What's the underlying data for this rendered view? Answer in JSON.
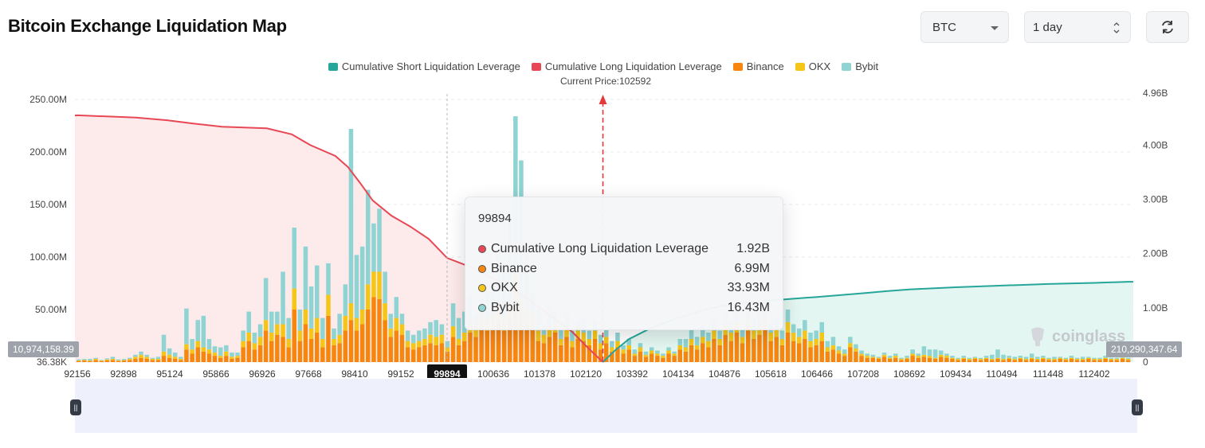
{
  "header": {
    "title": "Bitcoin Exchange Liquidation Map",
    "coin_select": "BTC",
    "range_select": "1 day"
  },
  "colors": {
    "short_cum": "#26a69a",
    "long_cum": "#e84855",
    "binance": "#f7860f",
    "okx": "#f5c518",
    "bybit": "#8fd3d3"
  },
  "current_price_label": "Current Price:102592",
  "chart_data": {
    "type": "bar",
    "legend": [
      "Cumulative Short Liquidation Leverage",
      "Cumulative Long Liquidation Leverage",
      "Binance",
      "OKX",
      "Bybit"
    ],
    "legend_placement": "top-center",
    "current_price": 102592,
    "x_ticks": [
      "92156",
      "92898",
      "95124",
      "95866",
      "96926",
      "97668",
      "98410",
      "99152",
      "99894",
      "100636",
      "101378",
      "102120",
      "103392",
      "104134",
      "104876",
      "105618",
      "106466",
      "107208",
      "108692",
      "109434",
      "110494",
      "111448",
      "112402"
    ],
    "highlighted_x": "99894",
    "y_left_ticks": [
      "36.38K",
      "50.00M",
      "100.00M",
      "150.00M",
      "200.00M",
      "250.00M"
    ],
    "y_right_ticks": [
      "0",
      "1.00B",
      "2.00B",
      "3.00B",
      "4.00B",
      "4.96B"
    ],
    "y_left_range_millions": [
      0,
      250
    ],
    "y_right_range_billions": [
      0,
      4.96
    ],
    "edge_labels": {
      "left": "10,974,158.39",
      "right": "210,290,347.64"
    },
    "bars": [
      [
        1,
        0.5,
        1
      ],
      [
        1.5,
        0.5,
        1
      ],
      [
        1,
        0.5,
        1.5
      ],
      [
        2,
        1,
        1
      ],
      [
        1,
        0.5,
        0.5
      ],
      [
        1.5,
        1,
        1
      ],
      [
        2,
        1,
        2
      ],
      [
        1,
        0.5,
        1
      ],
      [
        1.5,
        0.5,
        1
      ],
      [
        2,
        1,
        1
      ],
      [
        3,
        2,
        2
      ],
      [
        4,
        3,
        3
      ],
      [
        3,
        2,
        2
      ],
      [
        2,
        1,
        1
      ],
      [
        2,
        1,
        2
      ],
      [
        6,
        4,
        16
      ],
      [
        4,
        3,
        6
      ],
      [
        3,
        2,
        4
      ],
      [
        2,
        1,
        2
      ],
      [
        12,
        5,
        34
      ],
      [
        8,
        4,
        10
      ],
      [
        14,
        6,
        20
      ],
      [
        10,
        4,
        30
      ],
      [
        8,
        4,
        10
      ],
      [
        6,
        3,
        6
      ],
      [
        4,
        2,
        8
      ],
      [
        6,
        4,
        6
      ],
      [
        3,
        2,
        4
      ],
      [
        4,
        2,
        3
      ],
      [
        14,
        6,
        10
      ],
      [
        20,
        8,
        20
      ],
      [
        12,
        6,
        10
      ],
      [
        16,
        8,
        12
      ],
      [
        30,
        10,
        40
      ],
      [
        20,
        8,
        20
      ],
      [
        26,
        10,
        12
      ],
      [
        24,
        12,
        50
      ],
      [
        14,
        8,
        20
      ],
      [
        50,
        20,
        58
      ],
      [
        20,
        10,
        20
      ],
      [
        36,
        14,
        60
      ],
      [
        22,
        10,
        40
      ],
      [
        28,
        14,
        50
      ],
      [
        14,
        8,
        20
      ],
      [
        44,
        20,
        30
      ],
      [
        16,
        6,
        10
      ],
      [
        18,
        8,
        20
      ],
      [
        30,
        14,
        30
      ],
      [
        40,
        16,
        166
      ],
      [
        30,
        12,
        60
      ],
      [
        36,
        14,
        60
      ],
      [
        50,
        24,
        90
      ],
      [
        62,
        24,
        46
      ],
      [
        60,
        26,
        60
      ],
      [
        40,
        16,
        30
      ],
      [
        24,
        8,
        14
      ],
      [
        30,
        12,
        20
      ],
      [
        26,
        10,
        10
      ],
      [
        14,
        6,
        10
      ],
      [
        12,
        6,
        8
      ],
      [
        14,
        6,
        10
      ],
      [
        16,
        6,
        10
      ],
      [
        18,
        8,
        12
      ],
      [
        16,
        8,
        16
      ],
      [
        18,
        8,
        10
      ],
      [
        10,
        4,
        6
      ],
      [
        24,
        10,
        22
      ],
      [
        16,
        6,
        20
      ],
      [
        20,
        8,
        20
      ],
      [
        28,
        12,
        22
      ],
      [
        24,
        10,
        12
      ],
      [
        34,
        12,
        14
      ],
      [
        30,
        12,
        24
      ],
      [
        32,
        14,
        30
      ],
      [
        40,
        16,
        50
      ],
      [
        30,
        14,
        50
      ],
      [
        40,
        16,
        80
      ],
      [
        60,
        24,
        150
      ],
      [
        46,
        16,
        130
      ],
      [
        36,
        14,
        60
      ],
      [
        32,
        14,
        20
      ],
      [
        20,
        10,
        20
      ],
      [
        18,
        8,
        10
      ],
      [
        24,
        10,
        20
      ],
      [
        28,
        10,
        10
      ],
      [
        16,
        6,
        10
      ],
      [
        24,
        10,
        12
      ],
      [
        14,
        6,
        10
      ],
      [
        22,
        8,
        10
      ],
      [
        20,
        8,
        14
      ],
      [
        16,
        6,
        8
      ],
      [
        22,
        8,
        10
      ],
      [
        12,
        6,
        8
      ],
      [
        18,
        6,
        8
      ],
      [
        10,
        4,
        6
      ],
      [
        14,
        6,
        8
      ],
      [
        8,
        4,
        4
      ],
      [
        12,
        4,
        6
      ],
      [
        6,
        2,
        4
      ],
      [
        10,
        4,
        4
      ],
      [
        5,
        2,
        3
      ],
      [
        8,
        3,
        3
      ],
      [
        6,
        2,
        3
      ],
      [
        4,
        2,
        2
      ],
      [
        8,
        3,
        3
      ],
      [
        6,
        2,
        2
      ],
      [
        12,
        4,
        6
      ],
      [
        10,
        4,
        8
      ],
      [
        16,
        6,
        10
      ],
      [
        12,
        4,
        8
      ],
      [
        18,
        6,
        10
      ],
      [
        14,
        6,
        8
      ],
      [
        22,
        8,
        10
      ],
      [
        16,
        6,
        8
      ],
      [
        26,
        10,
        12
      ],
      [
        20,
        8,
        10
      ],
      [
        28,
        10,
        12
      ],
      [
        18,
        6,
        8
      ],
      [
        30,
        10,
        14
      ],
      [
        22,
        8,
        12
      ],
      [
        26,
        10,
        12
      ],
      [
        32,
        12,
        14
      ],
      [
        20,
        8,
        10
      ],
      [
        24,
        8,
        10
      ],
      [
        16,
        6,
        8
      ],
      [
        28,
        10,
        12
      ],
      [
        20,
        8,
        8
      ],
      [
        18,
        6,
        8
      ],
      [
        22,
        8,
        10
      ],
      [
        14,
        6,
        8
      ],
      [
        16,
        6,
        8
      ],
      [
        20,
        8,
        10
      ],
      [
        10,
        4,
        6
      ],
      [
        12,
        4,
        8
      ],
      [
        8,
        3,
        4
      ],
      [
        6,
        2,
        4
      ],
      [
        14,
        4,
        6
      ],
      [
        10,
        3,
        4
      ],
      [
        6,
        2,
        3
      ],
      [
        4,
        2,
        2
      ],
      [
        4,
        1,
        2
      ],
      [
        3,
        1,
        1
      ],
      [
        5,
        2,
        2
      ],
      [
        3,
        1,
        2
      ],
      [
        4,
        2,
        2
      ],
      [
        2,
        1,
        1
      ],
      [
        3,
        1,
        2
      ],
      [
        6,
        2,
        4
      ],
      [
        4,
        2,
        2
      ],
      [
        5,
        2,
        8
      ],
      [
        4,
        2,
        6
      ],
      [
        3,
        1,
        8
      ],
      [
        5,
        2,
        4
      ],
      [
        4,
        2,
        2
      ],
      [
        3,
        1,
        2
      ],
      [
        2,
        1,
        1
      ],
      [
        3,
        1,
        2
      ],
      [
        2,
        1,
        1
      ],
      [
        3,
        1,
        1
      ],
      [
        2,
        1,
        1
      ],
      [
        3,
        1,
        2
      ],
      [
        2,
        1,
        4
      ],
      [
        3,
        1,
        8
      ],
      [
        2,
        1,
        4
      ],
      [
        3,
        1,
        2
      ],
      [
        2,
        1,
        2
      ],
      [
        3,
        1,
        2
      ],
      [
        2,
        1,
        2
      ],
      [
        3,
        1,
        4
      ],
      [
        2,
        1,
        2
      ],
      [
        3,
        1,
        2
      ],
      [
        2,
        1,
        1
      ],
      [
        2,
        1,
        2
      ],
      [
        3,
        1,
        1
      ],
      [
        2,
        1,
        1
      ],
      [
        3,
        1,
        2
      ],
      [
        2,
        1,
        1
      ],
      [
        2,
        1,
        2
      ],
      [
        3,
        1,
        1
      ],
      [
        2,
        1,
        1
      ],
      [
        2,
        1,
        1
      ],
      [
        3,
        1,
        2
      ],
      [
        2,
        1,
        1
      ],
      [
        2,
        1,
        1
      ],
      [
        3,
        1,
        2
      ],
      [
        2,
        1,
        1
      ]
    ],
    "long_cumulative_billions": [
      [
        92156,
        4.55
      ],
      [
        93500,
        4.51
      ],
      [
        95000,
        4.46
      ],
      [
        95500,
        4.4
      ],
      [
        96000,
        4.34
      ],
      [
        97000,
        4.31
      ],
      [
        97400,
        4.2
      ],
      [
        97700,
        4.0
      ],
      [
        98100,
        3.8
      ],
      [
        98300,
        3.6
      ],
      [
        98500,
        3.3
      ],
      [
        98700,
        2.98
      ],
      [
        99000,
        2.7
      ],
      [
        99300,
        2.5
      ],
      [
        99600,
        2.27
      ],
      [
        99894,
        1.92
      ],
      [
        100300,
        1.74
      ],
      [
        100700,
        1.5
      ],
      [
        101100,
        1.24
      ],
      [
        101500,
        0.9
      ],
      [
        101900,
        0.56
      ],
      [
        102200,
        0.25
      ],
      [
        102592,
        0.0
      ]
    ],
    "short_cumulative_billions": [
      [
        102592,
        0.0
      ],
      [
        102900,
        0.2
      ],
      [
        103300,
        0.42
      ],
      [
        103700,
        0.63
      ],
      [
        104100,
        0.8
      ],
      [
        104500,
        0.95
      ],
      [
        104900,
        1.05
      ],
      [
        105300,
        1.1
      ],
      [
        105800,
        1.15
      ],
      [
        106466,
        1.2
      ],
      [
        107208,
        1.27
      ],
      [
        108000,
        1.31
      ],
      [
        108692,
        1.34
      ],
      [
        109434,
        1.38
      ],
      [
        110494,
        1.41
      ],
      [
        111448,
        1.44
      ],
      [
        112402,
        1.46
      ],
      [
        113100,
        1.48
      ]
    ]
  },
  "tooltip": {
    "title": "99894",
    "rows": [
      {
        "label": "Cumulative Long Liquidation Leverage",
        "value": "1.92B",
        "color": "#e84855"
      },
      {
        "label": "Binance",
        "value": "6.99M",
        "color": "#f7860f"
      },
      {
        "label": "OKX",
        "value": "33.93M",
        "color": "#f5c518"
      },
      {
        "label": "Bybit",
        "value": "16.43M",
        "color": "#8fd3d3"
      }
    ]
  },
  "watermark": "coinglass"
}
